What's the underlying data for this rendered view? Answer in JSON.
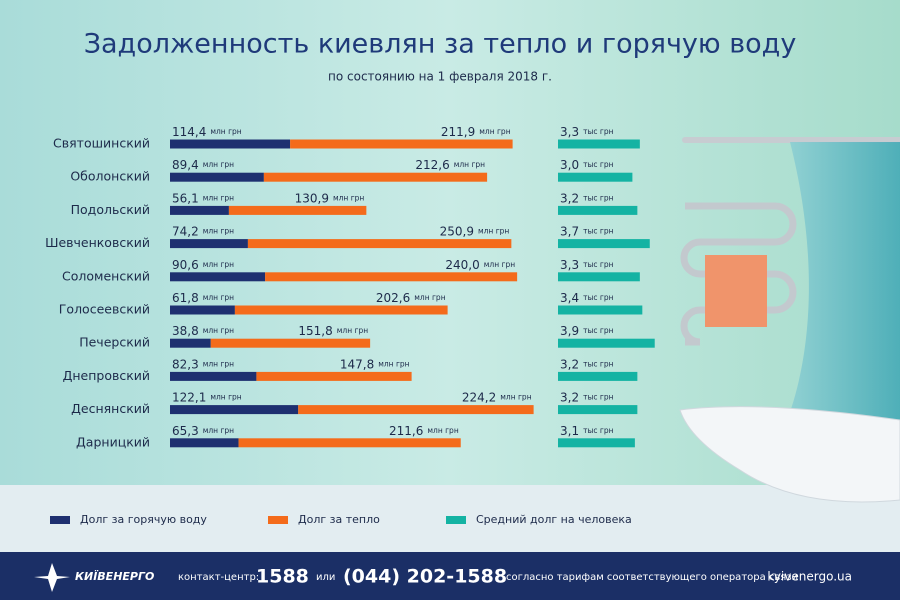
{
  "chart_data": {
    "type": "bar",
    "stacked": true,
    "title": "Задолженность киевлян за тепло и горячую воду",
    "subtitle": "по состоянию на 1 февраля 2018 г.",
    "categories": [
      "Святошинский",
      "Оболонский",
      "Подольский",
      "Шевченковский",
      "Соломенский",
      "Голосеевский",
      "Печерский",
      "Днепровский",
      "Деснянский",
      "Дарницкий"
    ],
    "series": [
      {
        "name": "Долг за горячую воду",
        "color": "#1e3070",
        "unit": "млн грн",
        "values": [
          114.4,
          89.4,
          56.1,
          74.2,
          90.6,
          61.8,
          38.8,
          82.3,
          122.1,
          65.3
        ],
        "value_labels": [
          "114,4",
          "89,4",
          "56,1",
          "74,2",
          "90,6",
          "61,8",
          "38,8",
          "82,3",
          "122,1",
          "65,3"
        ]
      },
      {
        "name": "Долг за тепло",
        "color": "#f46b1b",
        "unit": "млн грн",
        "values": [
          211.9,
          212.6,
          130.9,
          250.9,
          240.0,
          202.6,
          151.8,
          147.8,
          224.2,
          211.6
        ],
        "value_labels": [
          "211,9",
          "212,6",
          "130,9",
          "250,9",
          "240,0",
          "202,6",
          "151,8",
          "147,8",
          "224,2",
          "211,6"
        ]
      },
      {
        "name": "Средний долг на человека",
        "color": "#14b3a3",
        "unit": "тыс грн",
        "axis": "y2",
        "values": [
          3.3,
          3.0,
          3.2,
          3.7,
          3.3,
          3.4,
          3.9,
          3.2,
          3.2,
          3.1
        ],
        "value_labels": [
          "3,3",
          "3,0",
          "3,2",
          "3,7",
          "3,3",
          "3,4",
          "3,9",
          "3,2",
          "3,2",
          "3,1"
        ]
      }
    ]
  },
  "footer": {
    "logo": "КИЇВЕНЕРГО",
    "contact_label": "контакт-центр:",
    "short_number": "1588",
    "or": "или",
    "phone": "(044) 202-1588",
    "note": "согласно тарифам соответствующего оператора связи",
    "site": "kyivenergo.ua"
  }
}
